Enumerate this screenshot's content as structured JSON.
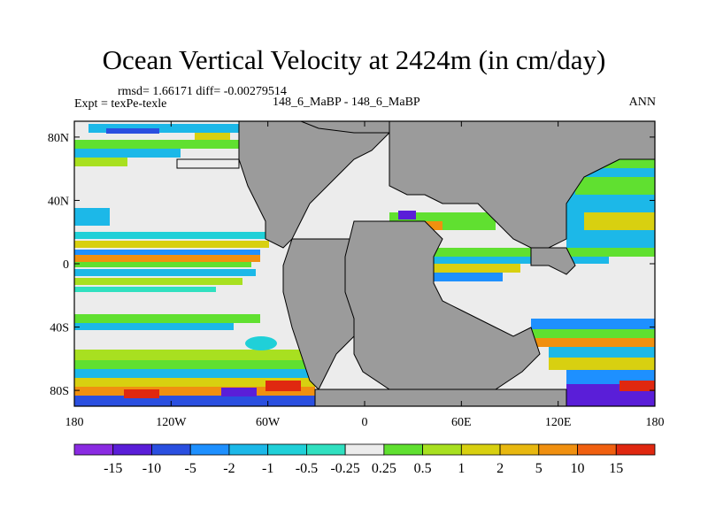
{
  "chart_data": {
    "type": "heatmap",
    "title": "Ocean Vertical Velocity at 2424m (in cm/day)",
    "stats_label": "rmsd= 1.66171 diff= -0.00279514",
    "experiment_label": "Expt = texPe-texle",
    "case_label": "148_6_MaBP - 148_6_MaBP",
    "season_label": "ANN",
    "xlim": [
      -180,
      180
    ],
    "ylim": [
      -90,
      90
    ],
    "x_ticks": [
      {
        "value": -180,
        "label": "180"
      },
      {
        "value": -120,
        "label": "120W"
      },
      {
        "value": -60,
        "label": "60W"
      },
      {
        "value": 0,
        "label": "0"
      },
      {
        "value": 60,
        "label": "60E"
      },
      {
        "value": 120,
        "label": "120E"
      },
      {
        "value": 180,
        "label": "180"
      }
    ],
    "y_ticks": [
      {
        "value": 80,
        "label": "80N"
      },
      {
        "value": 40,
        "label": "40N"
      },
      {
        "value": 0,
        "label": "0"
      },
      {
        "value": -40,
        "label": "40S"
      },
      {
        "value": -80,
        "label": "80S"
      }
    ],
    "colorbar": {
      "colors": [
        "#8a2be2",
        "#5a1ed8",
        "#2a4fe0",
        "#1e90ff",
        "#1cb8e8",
        "#20d0d8",
        "#30e0c0",
        "#ececec",
        "#60e030",
        "#a8e020",
        "#d8d010",
        "#e8b810",
        "#f09010",
        "#f06010",
        "#e02810"
      ],
      "labels": [
        "-15",
        "-10",
        "-5",
        "-2",
        "-1",
        "-0.5",
        "-0.25",
        "0.25",
        "0.5",
        "1",
        "2",
        "5",
        "10",
        "15"
      ]
    },
    "land_color": "#9b9b9b",
    "ocean_background_color": "#ececec"
  }
}
